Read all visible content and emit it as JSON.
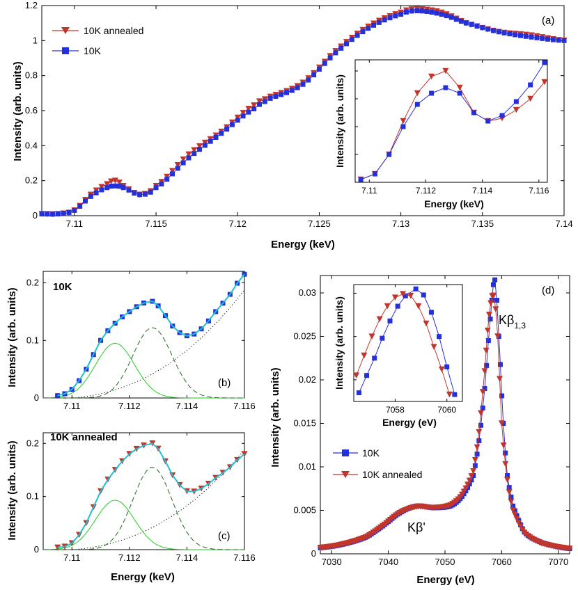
{
  "chart_data": [
    {
      "id": "a",
      "type": "line",
      "panel_label": "(a)",
      "xlabel": "Energy (keV)",
      "ylabel": "Intensity (arb. units)",
      "xlim": [
        7.108,
        7.14
      ],
      "ylim": [
        0,
        1.2
      ],
      "xticks": [
        7.11,
        7.115,
        7.12,
        7.125,
        7.13,
        7.135,
        7.14
      ],
      "xtick_labels": [
        "7.11",
        "7.115",
        "7.12",
        "7.125",
        "7.13",
        "7.135",
        "7.14"
      ],
      "yticks": [
        0,
        0.2,
        0.4,
        0.6,
        0.8,
        1,
        1.2
      ],
      "ytick_labels": [
        "0",
        "0.2",
        "0.4",
        "0.6",
        "0.8",
        "1",
        "1.2"
      ],
      "legend": [
        "10K annealed",
        "10K"
      ],
      "series": [
        {
          "name": "10K annealed",
          "color": "#c0362c",
          "marker": "triangle-down",
          "x": [
            7.108,
            7.109,
            7.11,
            7.111,
            7.112,
            7.1125,
            7.113,
            7.114,
            7.115,
            7.117,
            7.119,
            7.121,
            7.122,
            7.124,
            7.126,
            7.128,
            7.13,
            7.131,
            7.1325,
            7.134,
            7.136,
            7.138,
            7.14
          ],
          "y": [
            0.01,
            0.01,
            0.03,
            0.12,
            0.18,
            0.2,
            0.17,
            0.12,
            0.17,
            0.35,
            0.48,
            0.63,
            0.68,
            0.76,
            0.94,
            1.08,
            1.16,
            1.18,
            1.16,
            1.1,
            1.05,
            1.03,
            1.0
          ]
        },
        {
          "name": "10K",
          "color": "#2430d8",
          "marker": "square",
          "x": [
            7.108,
            7.109,
            7.11,
            7.111,
            7.112,
            7.1125,
            7.113,
            7.114,
            7.115,
            7.117,
            7.119,
            7.121,
            7.122,
            7.124,
            7.126,
            7.128,
            7.13,
            7.131,
            7.1325,
            7.134,
            7.136,
            7.138,
            7.14
          ],
          "y": [
            0.01,
            0.01,
            0.03,
            0.11,
            0.16,
            0.17,
            0.16,
            0.12,
            0.16,
            0.33,
            0.47,
            0.61,
            0.67,
            0.75,
            0.93,
            1.07,
            1.15,
            1.17,
            1.15,
            1.1,
            1.05,
            1.02,
            1.0
          ]
        }
      ]
    },
    {
      "id": "a-inset",
      "type": "line",
      "xlabel": "Energy (keV)",
      "ylabel": "Intensity (arb. units)",
      "xlim": [
        7.1095,
        7.1163
      ],
      "xticks": [
        7.11,
        7.112,
        7.114,
        7.116
      ],
      "xtick_labels": [
        "7.11",
        "7.112",
        "7.114",
        "7.116"
      ],
      "series": [
        {
          "name": "10K annealed",
          "color": "#c0362c",
          "marker": "triangle-down",
          "x": [
            7.1097,
            7.1102,
            7.1107,
            7.1112,
            7.1117,
            7.1122,
            7.1127,
            7.1132,
            7.1137,
            7.1142,
            7.1147,
            7.1152,
            7.1157,
            7.1162
          ],
          "y": [
            0.005,
            0.015,
            0.05,
            0.11,
            0.16,
            0.19,
            0.2,
            0.17,
            0.125,
            0.11,
            0.115,
            0.13,
            0.15,
            0.18
          ]
        },
        {
          "name": "10K",
          "color": "#2430d8",
          "marker": "square",
          "x": [
            7.1097,
            7.1102,
            7.1107,
            7.1112,
            7.1117,
            7.1122,
            7.1127,
            7.1132,
            7.1137,
            7.1142,
            7.1147,
            7.1152,
            7.1157,
            7.1162
          ],
          "y": [
            0.005,
            0.015,
            0.05,
            0.1,
            0.14,
            0.16,
            0.17,
            0.16,
            0.125,
            0.11,
            0.12,
            0.145,
            0.175,
            0.215
          ]
        }
      ]
    },
    {
      "id": "b",
      "type": "line",
      "panel_label": "(b)",
      "title": "10K",
      "xlim": [
        7.109,
        7.116
      ],
      "ylim": [
        0,
        0.22
      ],
      "xticks": [
        7.11,
        7.112,
        7.114,
        7.116
      ],
      "xtick_labels": [
        "7.11",
        "7.112",
        "7.114",
        "7.116"
      ],
      "yticks": [
        0,
        0.1,
        0.2
      ],
      "ytick_labels": [
        "0",
        "0.1",
        "0.2"
      ],
      "ylabel": "Intensity (arb. units)",
      "data": {
        "name": "10K",
        "color": "#2430d8",
        "marker": "square",
        "x": [
          7.1095,
          7.11,
          7.1105,
          7.111,
          7.1115,
          7.112,
          7.1125,
          7.1128,
          7.113,
          7.1135,
          7.114,
          7.1145,
          7.115,
          7.1155,
          7.116
        ],
        "y": [
          0.004,
          0.015,
          0.05,
          0.1,
          0.13,
          0.15,
          0.165,
          0.168,
          0.16,
          0.125,
          0.108,
          0.12,
          0.15,
          0.18,
          0.215
        ]
      },
      "fit": {
        "peak1_center": 7.1115,
        "peak1_height": 0.095,
        "peak2_center": 7.1128,
        "peak2_height": 0.122,
        "sigma": 0.00068
      }
    },
    {
      "id": "c",
      "type": "line",
      "panel_label": "(c)",
      "title": "10K annealed",
      "xlabel": "Energy (keV)",
      "xlim": [
        7.109,
        7.116
      ],
      "ylim": [
        0,
        0.22
      ],
      "xticks": [
        7.11,
        7.112,
        7.114,
        7.116
      ],
      "xtick_labels": [
        "7.11",
        "7.112",
        "7.114",
        "7.116"
      ],
      "yticks": [
        0,
        0.1,
        0.2
      ],
      "ytick_labels": [
        "0",
        "0.1",
        "0.2"
      ],
      "ylabel": "Intensity (arb. units)",
      "data": {
        "name": "10K annealed",
        "color": "#c0362c",
        "marker": "triangle-down",
        "x": [
          7.1095,
          7.11,
          7.1105,
          7.111,
          7.1115,
          7.112,
          7.1125,
          7.1128,
          7.113,
          7.1135,
          7.114,
          7.1145,
          7.115,
          7.1155,
          7.116
        ],
        "y": [
          0.004,
          0.012,
          0.05,
          0.11,
          0.15,
          0.18,
          0.196,
          0.2,
          0.19,
          0.14,
          0.11,
          0.115,
          0.135,
          0.155,
          0.18
        ]
      },
      "fit": {
        "peak1_center": 7.1115,
        "peak1_height": 0.093,
        "peak2_center": 7.1128,
        "peak2_height": 0.155,
        "sigma": 0.00068
      }
    },
    {
      "id": "d",
      "type": "line",
      "panel_label": "(d)",
      "xlabel": "Energy (eV)",
      "ylabel": "Intensity (arb. units)",
      "xlim": [
        7028,
        7072
      ],
      "ylim": [
        0,
        0.032
      ],
      "xticks": [
        7030,
        7040,
        7050,
        7060,
        7070
      ],
      "xtick_labels": [
        "7030",
        "7040",
        "7050",
        "7060",
        "7070"
      ],
      "yticks": [
        0,
        0.005,
        0.01,
        0.015,
        0.02,
        0.025,
        0.03
      ],
      "ytick_labels": [
        "0",
        "0.005",
        "0.01",
        "0.015",
        "0.02",
        "0.025",
        "0.03"
      ],
      "legend": [
        "10K",
        "10K annealed"
      ],
      "annotations": {
        "kb13_main": "Kβ",
        "kb13_sub": "1,3",
        "kbprime": "Kβ'"
      },
      "series": [
        {
          "name": "10K",
          "color": "#2430d8",
          "marker": "square",
          "x": [
            7028,
            7032,
            7036,
            7039,
            7042,
            7045,
            7048,
            7051,
            7053,
            7055,
            7056,
            7057,
            7058,
            7058.8,
            7059.5,
            7060.3,
            7061,
            7062,
            7064,
            7067,
            7072
          ],
          "y": [
            0.0007,
            0.0011,
            0.0019,
            0.0032,
            0.0047,
            0.0055,
            0.0053,
            0.0055,
            0.0066,
            0.009,
            0.013,
            0.019,
            0.027,
            0.0315,
            0.025,
            0.015,
            0.009,
            0.0055,
            0.0025,
            0.0013,
            0.0006
          ]
        },
        {
          "name": "10K annealed",
          "color": "#c0362c",
          "marker": "triangle-down",
          "x": [
            7028,
            7032,
            7036,
            7039,
            7042,
            7045,
            7048,
            7051,
            7053,
            7055,
            7056,
            7057,
            7057.8,
            7058.6,
            7059.3,
            7060,
            7061,
            7062,
            7064,
            7067,
            7072
          ],
          "y": [
            0.0007,
            0.0011,
            0.0019,
            0.0032,
            0.0047,
            0.0054,
            0.0053,
            0.0056,
            0.0068,
            0.0095,
            0.014,
            0.021,
            0.0275,
            0.0297,
            0.025,
            0.015,
            0.0085,
            0.005,
            0.0024,
            0.0012,
            0.0006
          ]
        }
      ]
    },
    {
      "id": "d-inset",
      "type": "line",
      "xlabel": "Energy (eV)",
      "ylabel": "Intensity (arb. units)",
      "xlim": [
        7056.4,
        7060.6
      ],
      "xticks": [
        7058,
        7060
      ],
      "xtick_labels": [
        "7058",
        "7060"
      ],
      "series": [
        {
          "name": "10K",
          "color": "#2430d8",
          "marker": "square",
          "x": [
            7056.6,
            7056.9,
            7057.2,
            7057.5,
            7057.8,
            7058.1,
            7058.4,
            7058.8,
            7059.1,
            7059.4,
            7059.7,
            7060.0,
            7060.3
          ],
          "y": [
            0.0185,
            0.0205,
            0.0225,
            0.0248,
            0.0268,
            0.0285,
            0.0297,
            0.0305,
            0.0298,
            0.0278,
            0.025,
            0.0215,
            0.0183
          ]
        },
        {
          "name": "10K annealed",
          "color": "#c0362c",
          "marker": "triangle-down",
          "x": [
            7056.5,
            7056.8,
            7057.1,
            7057.4,
            7057.7,
            7058.0,
            7058.3,
            7058.6,
            7058.9,
            7059.2,
            7059.5,
            7059.8,
            7060.1
          ],
          "y": [
            0.0205,
            0.0228,
            0.025,
            0.027,
            0.0285,
            0.0295,
            0.0299,
            0.0297,
            0.0285,
            0.0265,
            0.0238,
            0.0212,
            0.0183
          ]
        }
      ]
    }
  ]
}
